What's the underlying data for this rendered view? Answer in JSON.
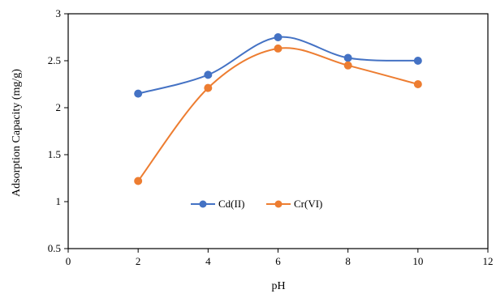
{
  "chart_data": {
    "type": "line",
    "title": "",
    "xlabel": "pH",
    "ylabel": "Adsorption Capacity (mg/g)",
    "xlim": [
      0,
      12
    ],
    "ylim": [
      0.5,
      3
    ],
    "xticks": [
      "0",
      "2",
      "4",
      "6",
      "8",
      "10",
      "12"
    ],
    "yticks": [
      "0.5",
      "1",
      "1.5",
      "2",
      "2.5",
      "3"
    ],
    "grid": false,
    "smooth": true,
    "legend": "center",
    "series": [
      {
        "name": "Cd(II)",
        "color": "#4472C4",
        "x": [
          2,
          4,
          6,
          8,
          10
        ],
        "y": [
          2.15,
          2.35,
          2.75,
          2.53,
          2.5
        ]
      },
      {
        "name": "Cr(VI)",
        "color": "#ED7D31",
        "x": [
          2,
          4,
          6,
          8,
          10
        ],
        "y": [
          1.22,
          2.21,
          2.63,
          2.45,
          2.25
        ]
      }
    ]
  }
}
